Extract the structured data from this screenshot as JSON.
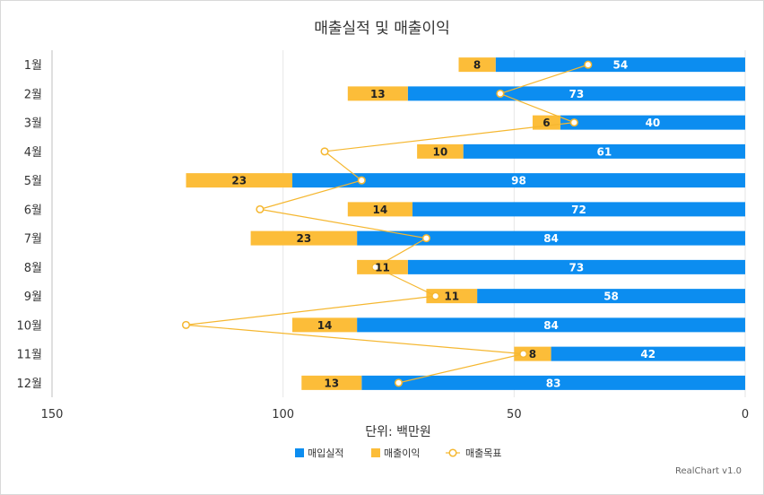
{
  "chart_data": {
    "type": "bar",
    "orientation": "horizontal",
    "stacked": true,
    "x_reversed": true,
    "title": "매출실적 및 매출이익",
    "xlabel": "단위: 백만원",
    "categories": [
      "1월",
      "2월",
      "3월",
      "4월",
      "5월",
      "6월",
      "7월",
      "8월",
      "9월",
      "10월",
      "11월",
      "12월"
    ],
    "xlim": [
      0,
      150
    ],
    "xticks": [
      0,
      50,
      100,
      150
    ],
    "grid": true,
    "legend_position": "bottom",
    "series": [
      {
        "name": "매입실적",
        "type": "bar",
        "color": "#0c8df0",
        "values": [
          54,
          73,
          40,
          61,
          98,
          72,
          84,
          73,
          58,
          84,
          42,
          83
        ]
      },
      {
        "name": "매출이익",
        "type": "bar",
        "color": "#fcbd39",
        "values": [
          8,
          13,
          6,
          10,
          23,
          14,
          23,
          11,
          11,
          14,
          8,
          13
        ]
      },
      {
        "name": "매출목표",
        "type": "line",
        "color": "#f5b730",
        "values": [
          34,
          53,
          37,
          91,
          83,
          105,
          69,
          80,
          67,
          121,
          48,
          75
        ]
      }
    ]
  },
  "credit": "RealChart v1.0"
}
